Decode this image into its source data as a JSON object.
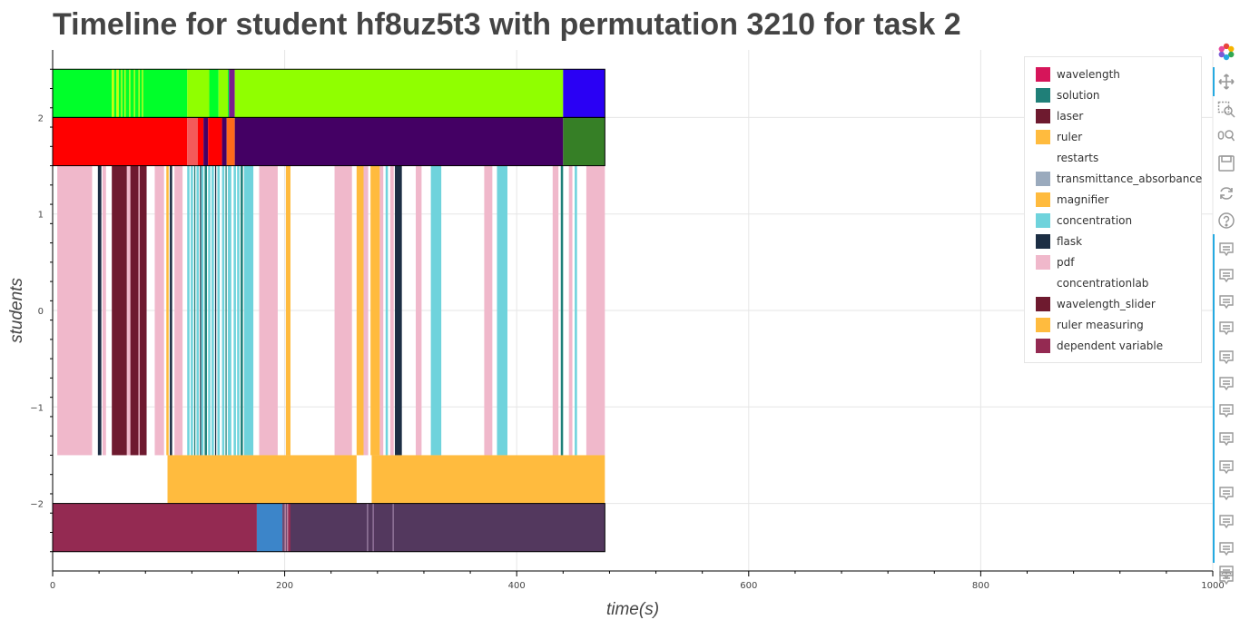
{
  "title": "Timeline for student hf8uz5t3 with permutation 3210 for task 2",
  "chart_data": {
    "type": "timeline",
    "title": "Timeline for student hf8uz5t3 with permutation 3210 for task 2",
    "xlabel": "time(s)",
    "ylabel": "students",
    "xlim": [
      0,
      1000
    ],
    "ylim": [
      -2.7,
      2.7
    ],
    "x_ticks": [
      0,
      200,
      400,
      600,
      800,
      1000
    ],
    "y_ticks": [
      -2,
      -1,
      0,
      1,
      2
    ],
    "y_tick_labels": [
      "−2",
      "−1",
      "0",
      "1",
      "2"
    ],
    "grid": true,
    "legend_position": "top-right",
    "legend": [
      {
        "label": "wavelength",
        "color": "#d6155a"
      },
      {
        "label": "solution",
        "color": "#1f7f78"
      },
      {
        "label": "laser",
        "color": "#6e1a2f"
      },
      {
        "label": "ruler",
        "color": "#ffbb3e"
      },
      {
        "label": "restarts",
        "color": "#ffffff"
      },
      {
        "label": "transmittance_absorbance",
        "color": "#9aaabd"
      },
      {
        "label": "magnifier",
        "color": "#ffbb3e"
      },
      {
        "label": "concentration",
        "color": "#6fd3dc"
      },
      {
        "label": "flask",
        "color": "#1c2e44"
      },
      {
        "label": "pdf",
        "color": "#f0b8cb"
      },
      {
        "label": "concentrationlab",
        "color": "#ffffff"
      },
      {
        "label": "wavelength_slider",
        "color": "#6e1a2f"
      },
      {
        "label": "ruler measuring",
        "color": "#ffbb3e"
      },
      {
        "label": "dependent variable",
        "color": "#942a52"
      }
    ],
    "bands": [
      {
        "y": [
          2,
          2.5
        ],
        "segments": [
          {
            "x0": 0,
            "x1": 51,
            "color": "#00ff2a"
          },
          {
            "x0": 51,
            "x1": 53,
            "color": "#c7ff00"
          },
          {
            "x0": 53,
            "x1": 55,
            "color": "#00ff2a"
          },
          {
            "x0": 55,
            "x1": 57,
            "color": "#c7ff00"
          },
          {
            "x0": 57,
            "x1": 59,
            "color": "#00ff2a"
          },
          {
            "x0": 59,
            "x1": 60,
            "color": "#c7ff00"
          },
          {
            "x0": 60,
            "x1": 62,
            "color": "#00ff2a"
          },
          {
            "x0": 62,
            "x1": 63,
            "color": "#c7ff00"
          },
          {
            "x0": 63,
            "x1": 66,
            "color": "#00ff2a"
          },
          {
            "x0": 66,
            "x1": 67,
            "color": "#c7ff00"
          },
          {
            "x0": 67,
            "x1": 70,
            "color": "#00ff2a"
          },
          {
            "x0": 70,
            "x1": 71,
            "color": "#c7ff00"
          },
          {
            "x0": 71,
            "x1": 74,
            "color": "#00ff2a"
          },
          {
            "x0": 74,
            "x1": 75,
            "color": "#c7ff00"
          },
          {
            "x0": 75,
            "x1": 77,
            "color": "#00ff2a"
          },
          {
            "x0": 77,
            "x1": 78,
            "color": "#c7ff00"
          },
          {
            "x0": 78,
            "x1": 116,
            "color": "#00ff2a"
          },
          {
            "x0": 116,
            "x1": 135,
            "color": "#90ff00"
          },
          {
            "x0": 135,
            "x1": 143,
            "color": "#00ff2a"
          },
          {
            "x0": 143,
            "x1": 151,
            "color": "#90ff00"
          },
          {
            "x0": 151,
            "x1": 152,
            "color": "#00ff2a"
          },
          {
            "x0": 152,
            "x1": 157,
            "color": "#7a1d8c"
          },
          {
            "x0": 157,
            "x1": 440,
            "color": "#90ff00"
          },
          {
            "x0": 440,
            "x1": 476,
            "color": "#2a00f4"
          }
        ]
      },
      {
        "y": [
          1.5,
          2
        ],
        "segments": [
          {
            "x0": 0,
            "x1": 116,
            "color": "#ff0000"
          },
          {
            "x0": 116,
            "x1": 125,
            "color": "#f45a5a"
          },
          {
            "x0": 125,
            "x1": 130,
            "color": "#ff0000"
          },
          {
            "x0": 130,
            "x1": 134,
            "color": "#440064"
          },
          {
            "x0": 134,
            "x1": 146,
            "color": "#ff0000"
          },
          {
            "x0": 146,
            "x1": 150,
            "color": "#440064"
          },
          {
            "x0": 150,
            "x1": 157,
            "color": "#ff6a1a"
          },
          {
            "x0": 157,
            "x1": 440,
            "color": "#440064"
          },
          {
            "x0": 440,
            "x1": 476,
            "color": "#367f26"
          }
        ]
      },
      {
        "y": [
          -1.5,
          1.5
        ],
        "segments": [
          {
            "x0": 4,
            "x1": 34,
            "color": "#f0b8cb"
          },
          {
            "x0": 39,
            "x1": 42,
            "color": "#1c2e44"
          },
          {
            "x0": 43,
            "x1": 46,
            "color": "#f0b8cb"
          },
          {
            "x0": 51,
            "x1": 64,
            "color": "#6e1a2f"
          },
          {
            "x0": 64,
            "x1": 67,
            "color": "#f0b8cb"
          },
          {
            "x0": 67,
            "x1": 74,
            "color": "#6e1a2f"
          },
          {
            "x0": 74,
            "x1": 75,
            "color": "#f0b8cb"
          },
          {
            "x0": 75,
            "x1": 81,
            "color": "#6e1a2f"
          },
          {
            "x0": 88,
            "x1": 96,
            "color": "#f0b8cb"
          },
          {
            "x0": 98,
            "x1": 100,
            "color": "#ffbb3e"
          },
          {
            "x0": 101,
            "x1": 103,
            "color": "#1c2e44"
          },
          {
            "x0": 105,
            "x1": 112,
            "color": "#f0b8cb"
          },
          {
            "x0": 116,
            "x1": 118,
            "color": "#6fd3dc"
          },
          {
            "x0": 119,
            "x1": 121,
            "color": "#6fd3dc"
          },
          {
            "x0": 122,
            "x1": 123,
            "color": "#1f7f78"
          },
          {
            "x0": 124,
            "x1": 126,
            "color": "#6fd3dc"
          },
          {
            "x0": 127,
            "x1": 128,
            "color": "#1c2e44"
          },
          {
            "x0": 128,
            "x1": 130,
            "color": "#6fd3dc"
          },
          {
            "x0": 131,
            "x1": 133,
            "color": "#1f7f78"
          },
          {
            "x0": 134,
            "x1": 136,
            "color": "#6fd3dc"
          },
          {
            "x0": 137,
            "x1": 139,
            "color": "#6fd3dc"
          },
          {
            "x0": 140,
            "x1": 141,
            "color": "#1c2e44"
          },
          {
            "x0": 142,
            "x1": 144,
            "color": "#6fd3dc"
          },
          {
            "x0": 146,
            "x1": 148,
            "color": "#6fd3dc"
          },
          {
            "x0": 149,
            "x1": 150,
            "color": "#1f7f78"
          },
          {
            "x0": 151,
            "x1": 154,
            "color": "#6fd3dc"
          },
          {
            "x0": 156,
            "x1": 158,
            "color": "#6fd3dc"
          },
          {
            "x0": 159,
            "x1": 161,
            "color": "#6fd3dc"
          },
          {
            "x0": 162,
            "x1": 164,
            "color": "#1f7f78"
          },
          {
            "x0": 165,
            "x1": 173,
            "color": "#6fd3dc"
          },
          {
            "x0": 178,
            "x1": 194,
            "color": "#f0b8cb"
          },
          {
            "x0": 201,
            "x1": 205,
            "color": "#ffbb3e"
          },
          {
            "x0": 243,
            "x1": 258,
            "color": "#f0b8cb"
          },
          {
            "x0": 262,
            "x1": 268,
            "color": "#ffbb3e"
          },
          {
            "x0": 268,
            "x1": 272,
            "color": "#f0b8cb"
          },
          {
            "x0": 274,
            "x1": 282,
            "color": "#ffbb3e"
          },
          {
            "x0": 282,
            "x1": 285,
            "color": "#f0b8cb"
          },
          {
            "x0": 287,
            "x1": 289,
            "color": "#6fd3dc"
          },
          {
            "x0": 291,
            "x1": 294,
            "color": "#f0b8cb"
          },
          {
            "x0": 295,
            "x1": 301,
            "color": "#1c2e44"
          },
          {
            "x0": 313,
            "x1": 318,
            "color": "#f0b8cb"
          },
          {
            "x0": 326,
            "x1": 335,
            "color": "#6fd3dc"
          },
          {
            "x0": 372,
            "x1": 379,
            "color": "#f0b8cb"
          },
          {
            "x0": 383,
            "x1": 392,
            "color": "#6fd3dc"
          },
          {
            "x0": 431,
            "x1": 436,
            "color": "#f0b8cb"
          },
          {
            "x0": 438,
            "x1": 440,
            "color": "#1f7f78"
          },
          {
            "x0": 445,
            "x1": 448,
            "color": "#f0b8cb"
          },
          {
            "x0": 450,
            "x1": 452,
            "color": "#6fd3dc"
          },
          {
            "x0": 460,
            "x1": 476,
            "color": "#f0b8cb"
          }
        ]
      },
      {
        "y": [
          -2,
          -1.5
        ],
        "segments": [
          {
            "x0": 99,
            "x1": 262,
            "color": "#ffbb3e"
          },
          {
            "x0": 275,
            "x1": 476,
            "color": "#ffbb3e"
          }
        ]
      },
      {
        "y": [
          -2.5,
          -2
        ],
        "segments": [
          {
            "x0": 0,
            "x1": 176,
            "color": "#942a52"
          },
          {
            "x0": 176,
            "x1": 198,
            "color": "#3c85c9"
          },
          {
            "x0": 198,
            "x1": 200,
            "color": "#6e4a6f"
          },
          {
            "x0": 200,
            "x1": 201,
            "color": "#b77a9a"
          },
          {
            "x0": 201,
            "x1": 202,
            "color": "#6e4a6f"
          },
          {
            "x0": 202,
            "x1": 203,
            "color": "#b77a9a"
          },
          {
            "x0": 203,
            "x1": 205,
            "color": "#942a52"
          },
          {
            "x0": 205,
            "x1": 271,
            "color": "#53385e"
          },
          {
            "x0": 271,
            "x1": 272,
            "color": "#8a6a94"
          },
          {
            "x0": 272,
            "x1": 276,
            "color": "#53385e"
          },
          {
            "x0": 276,
            "x1": 277,
            "color": "#8a6a94"
          },
          {
            "x0": 277,
            "x1": 293,
            "color": "#53385e"
          },
          {
            "x0": 293,
            "x1": 294,
            "color": "#8a6a94"
          },
          {
            "x0": 294,
            "x1": 476,
            "color": "#53385e"
          }
        ]
      }
    ]
  },
  "toolbar": {
    "tools": [
      "bokeh-logo-icon",
      "pan-icon",
      "box-zoom-icon",
      "wheel-zoom-icon",
      "save-icon",
      "reset-icon",
      "help-icon",
      "hover-icon",
      "hover-icon",
      "hover-icon",
      "hover-icon",
      "hover-icon",
      "hover-icon",
      "hover-icon",
      "hover-icon",
      "hover-icon",
      "hover-icon",
      "hover-icon",
      "hover-icon",
      "hover-icon",
      "hover-icon",
      "more-icon"
    ],
    "more_label": "⋯"
  }
}
